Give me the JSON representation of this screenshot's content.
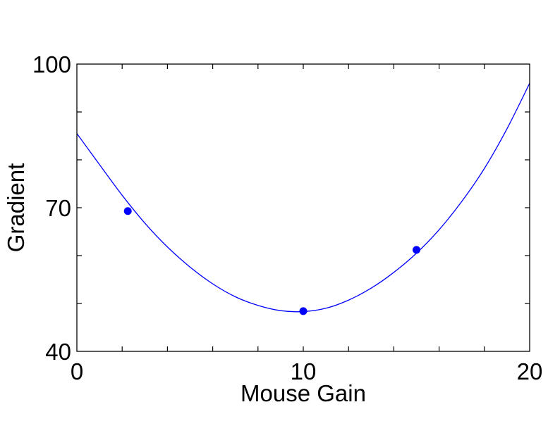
{
  "chart_data": {
    "type": "line",
    "title": "",
    "xlabel": "Mouse Gain",
    "ylabel": "Gradient",
    "xlim": [
      0,
      20
    ],
    "ylim": [
      40,
      100
    ],
    "x_ticks": [
      0,
      10,
      20
    ],
    "y_ticks": [
      40,
      70,
      100
    ],
    "x_tick_labels": [
      "0",
      "10",
      "20"
    ],
    "y_tick_labels": [
      "40",
      "70",
      "100"
    ],
    "x_minor_step": 2,
    "y_minor_step": 10,
    "grid": false,
    "legend": "none",
    "series": [
      {
        "kind": "curve",
        "color": "#0000ff",
        "x": [
          0,
          1,
          2,
          3,
          4,
          5,
          6,
          7,
          8,
          9,
          10,
          11,
          12,
          13,
          14,
          15,
          16,
          17,
          18,
          19,
          20
        ],
        "y": [
          85.5,
          79.0,
          72.6,
          66.8,
          61.8,
          57.6,
          54.1,
          51.4,
          49.6,
          48.5,
          48.3,
          49.0,
          50.7,
          53.2,
          56.5,
          60.5,
          65.4,
          71.3,
          78.2,
          86.5,
          96.0
        ]
      },
      {
        "kind": "points",
        "color": "#0000ff",
        "x": [
          2.25,
          10.0,
          15.0
        ],
        "y": [
          69.3,
          48.4,
          61.2
        ]
      }
    ]
  }
}
